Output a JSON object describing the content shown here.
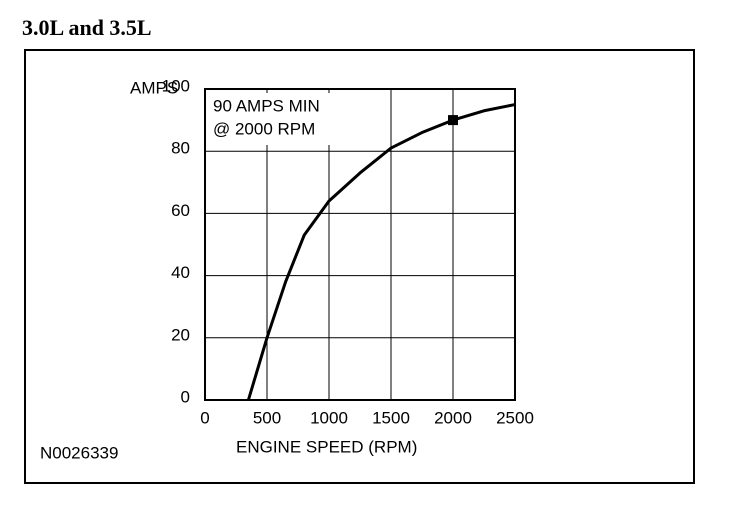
{
  "chart_data": {
    "type": "line",
    "title": "3.0L and 3.5L",
    "x": [
      350,
      500,
      650,
      800,
      1000,
      1250,
      1500,
      1750,
      2000,
      2250,
      2500
    ],
    "values": [
      0,
      20,
      38,
      53,
      64,
      73,
      81,
      86,
      90,
      93,
      95
    ],
    "color": "#000000",
    "xlim": [
      0,
      2500
    ],
    "xticks": [
      0,
      500,
      1000,
      1500,
      2000,
      2500
    ],
    "ylim": [
      0,
      100
    ],
    "yticks": [
      0,
      20,
      40,
      60,
      80,
      100
    ],
    "grid": true,
    "xlabel": "ENGINE SPEED (RPM)",
    "ylabel": "AMPS",
    "annotation": [
      "90 AMPS MIN",
      "@ 2000 RPM"
    ],
    "marker": {
      "x": 2000,
      "y": 90
    },
    "figure_id": "N0026339"
  }
}
